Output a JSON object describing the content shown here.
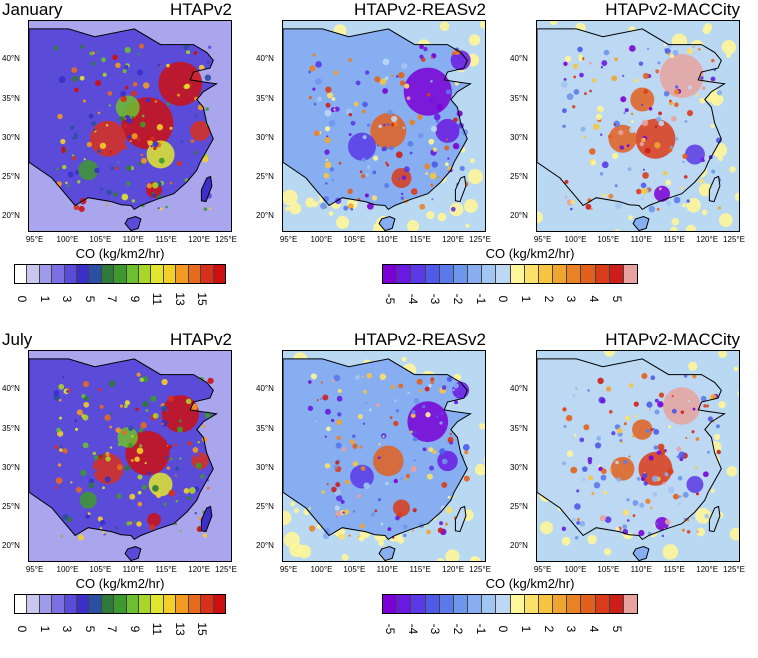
{
  "rows": [
    {
      "season": "January",
      "panels": [
        {
          "title": "HTAPv2",
          "kind": "abs"
        },
        {
          "title": "HTAPv2-REASv2",
          "kind": "diff_reas"
        },
        {
          "title": "HTAPv2-MACCity",
          "kind": "diff_macc"
        }
      ]
    },
    {
      "season": "July",
      "panels": [
        {
          "title": "HTAPv2",
          "kind": "abs"
        },
        {
          "title": "HTAPv2-REASv2",
          "kind": "diff_reas"
        },
        {
          "title": "HTAPv2-MACCity",
          "kind": "diff_macc"
        }
      ]
    }
  ],
  "lat_ticks": [
    "20°N",
    "25°N",
    "30°N",
    "35°N",
    "40°N"
  ],
  "lon_ticks": [
    "95°E",
    "100°E",
    "105°E",
    "110°E",
    "115°E",
    "120°E",
    "125°E"
  ],
  "colorbars": {
    "abs": {
      "title": "CO (kg/km2/hr)",
      "labels": [
        "0",
        "1",
        "3",
        "5",
        "7",
        "9",
        "11",
        "13",
        "15"
      ],
      "colors": [
        "#ffffff",
        "#c9c6f0",
        "#9f9bea",
        "#7a70e3",
        "#5a4bd9",
        "#3a2fc9",
        "#2b4fa3",
        "#2f7a3a",
        "#3e9a2e",
        "#6cbf2e",
        "#a8d62a",
        "#e0e62e",
        "#f3cf2a",
        "#f29a22",
        "#e86a1e",
        "#d9301c",
        "#cc1010"
      ]
    },
    "diff": {
      "title": "CO (kg/km2/hr)",
      "labels": [
        "-5",
        "-4",
        "-3",
        "-2",
        "-1",
        "0",
        "1",
        "2",
        "3",
        "4",
        "5"
      ],
      "colors": [
        "#7a00d6",
        "#6a1ae0",
        "#5a3ae6",
        "#4f5ae8",
        "#5a7aea",
        "#6e96ec",
        "#86aef0",
        "#a2c6f2",
        "#bcd8f2",
        "#fff59a",
        "#fbe06a",
        "#f6c542",
        "#f0a432",
        "#ea8226",
        "#e2601e",
        "#da3c1a",
        "#cc1f1a",
        "#e7a3a0"
      ]
    }
  },
  "chart_data": [
    {
      "type": "heatmap",
      "title": "HTAPv2",
      "subtitle": "January",
      "xlabel": "",
      "ylabel": "",
      "xlim": [
        94,
        125
      ],
      "ylim": [
        18,
        45
      ],
      "colorbar_label": "CO (kg/km2/hr)",
      "colorbar_range": [
        0,
        15
      ]
    },
    {
      "type": "heatmap",
      "title": "HTAPv2-REASv2",
      "xlabel": "",
      "ylabel": "",
      "xlim": [
        94,
        125
      ],
      "ylim": [
        18,
        45
      ],
      "colorbar_label": "CO (kg/km2/hr)",
      "colorbar_range": [
        -5,
        5
      ]
    },
    {
      "type": "heatmap",
      "title": "HTAPv2-MACCity",
      "xlabel": "",
      "ylabel": "",
      "xlim": [
        94,
        125
      ],
      "ylim": [
        18,
        45
      ],
      "colorbar_label": "CO (kg/km2/hr)",
      "colorbar_range": [
        -5,
        5
      ]
    },
    {
      "type": "heatmap",
      "title": "HTAPv2",
      "subtitle": "July",
      "xlabel": "",
      "ylabel": "",
      "xlim": [
        94,
        125
      ],
      "ylim": [
        18,
        45
      ],
      "colorbar_label": "CO (kg/km2/hr)",
      "colorbar_range": [
        0,
        15
      ]
    },
    {
      "type": "heatmap",
      "title": "HTAPv2-REASv2",
      "xlabel": "",
      "ylabel": "",
      "xlim": [
        94,
        125
      ],
      "ylim": [
        18,
        45
      ],
      "colorbar_label": "CO (kg/km2/hr)",
      "colorbar_range": [
        -5,
        5
      ]
    },
    {
      "type": "heatmap",
      "title": "HTAPv2-MACCity",
      "xlabel": "",
      "ylabel": "",
      "xlim": [
        94,
        125
      ],
      "ylim": [
        18,
        45
      ],
      "colorbar_label": "CO (kg/km2/hr)",
      "colorbar_range": [
        -5,
        5
      ]
    }
  ]
}
